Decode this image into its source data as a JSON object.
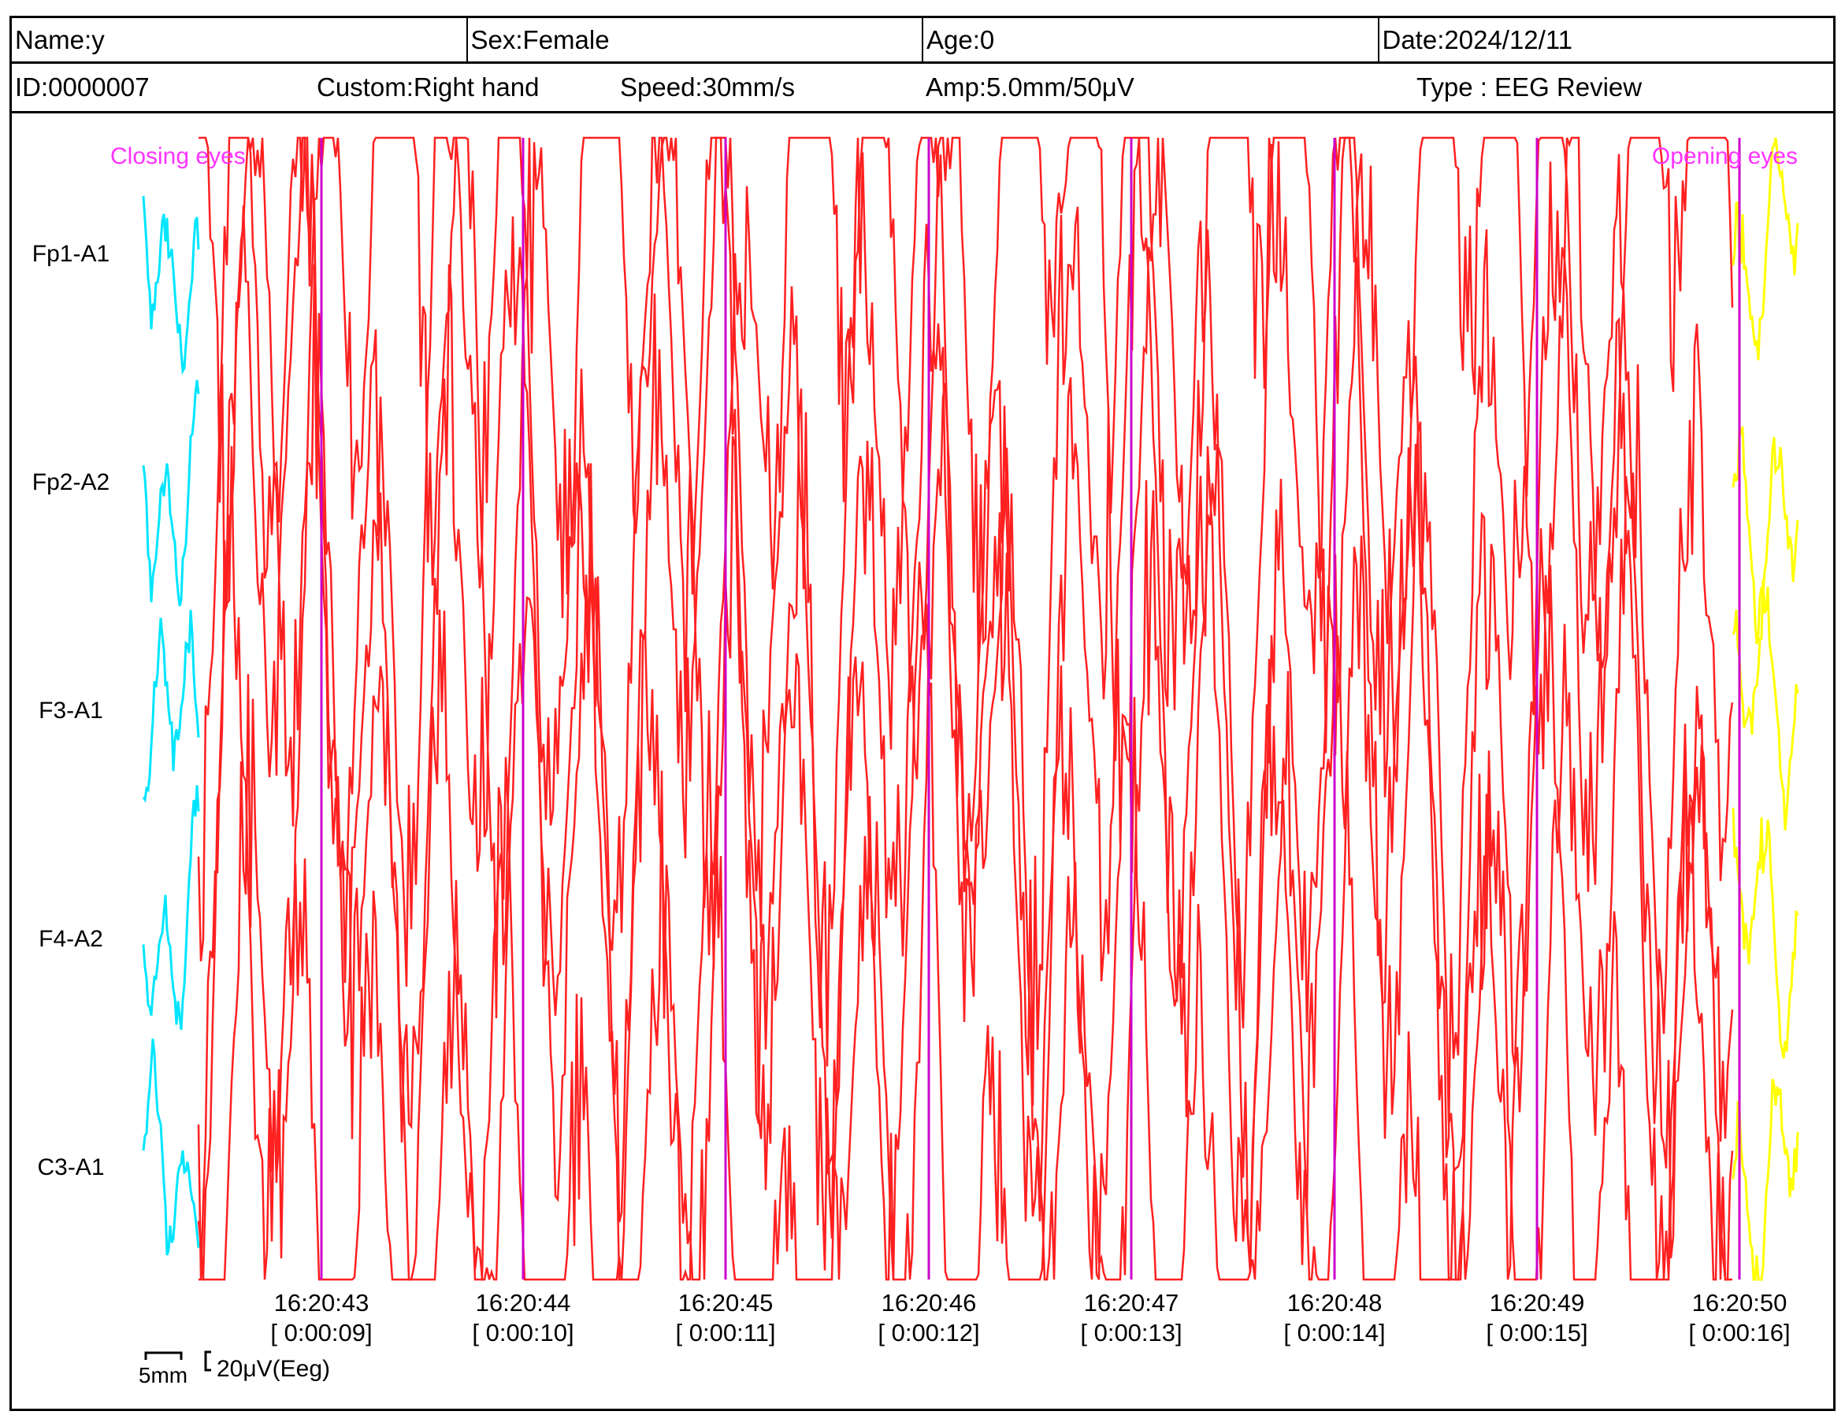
{
  "header": {
    "name": "Name:y",
    "sex": "Sex:Female",
    "age": "Age:0",
    "date": "Date:2024/12/11",
    "id": "ID:0000007",
    "custom": "Custom:Right hand",
    "speed": "Speed:30mm/s",
    "amp": "Amp:5.0mm/50μV",
    "type": "Type : EEG Review"
  },
  "chart_data": {
    "type": "line",
    "channels": [
      "Fp1-A1",
      "Fp2-A2",
      "F3-A1",
      "F4-A2",
      "C3-A1"
    ],
    "annotations": [
      {
        "text": "Closing eyes",
        "color": "#ff33ff",
        "at_time": "16:20:42"
      },
      {
        "text": "Opening eyes",
        "color": "#ff33ff",
        "at_time": "16:20:50"
      }
    ],
    "time_ticks": [
      {
        "clock": "16:20:43",
        "elapsed": "[ 0:00:09]"
      },
      {
        "clock": "16:20:44",
        "elapsed": "[ 0:00:10]"
      },
      {
        "clock": "16:20:45",
        "elapsed": "[ 0:00:11]"
      },
      {
        "clock": "16:20:46",
        "elapsed": "[ 0:00:12]"
      },
      {
        "clock": "16:20:47",
        "elapsed": "[ 0:00:13]"
      },
      {
        "clock": "16:20:48",
        "elapsed": "[ 0:00:14]"
      },
      {
        "clock": "16:20:49",
        "elapsed": "[ 0:00:15]"
      },
      {
        "clock": "16:20:50",
        "elapsed": "[ 0:00:16]"
      }
    ],
    "scale": {
      "time_label": "5mm",
      "amp_label": "20μV(Eeg)"
    },
    "colors": {
      "trace": "#ff2020",
      "pre_segment": "#00e5ff",
      "post_segment": "#ffff00",
      "second_marker": "#cc00cc"
    },
    "xlim_seconds": [
      8.0,
      16.2
    ],
    "grid": false
  }
}
